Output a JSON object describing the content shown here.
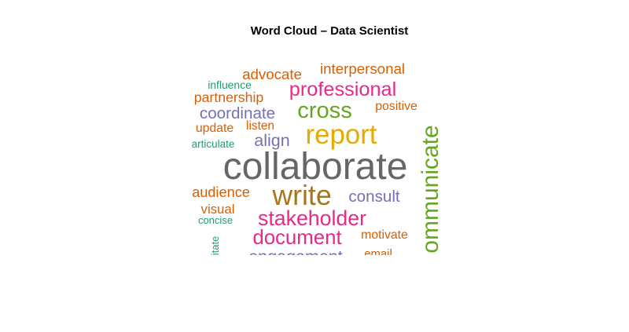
{
  "chart_data": {
    "type": "wordcloud",
    "title": "Word Cloud – Data Scientist",
    "colors": {
      "orange": "#d95f02",
      "teal": "#1b9e77",
      "purple": "#7570b3",
      "magenta": "#e7298a",
      "green": "#66a61e",
      "gold": "#e6ab02",
      "brown": "#a6761d",
      "gray": "#666666"
    },
    "words": [
      {
        "text": "collaborate",
        "weight": 100,
        "color": "gray",
        "rotate": 0
      },
      {
        "text": "write",
        "weight": 74,
        "color": "brown",
        "rotate": 0
      },
      {
        "text": "report",
        "weight": 72,
        "color": "gold",
        "rotate": 0
      },
      {
        "text": "ommunicate",
        "weight": 62,
        "color": "green",
        "rotate": -90
      },
      {
        "text": "cross",
        "weight": 60,
        "color": "green",
        "rotate": 0
      },
      {
        "text": "stakeholder",
        "weight": 55,
        "color": "magenta",
        "rotate": 0
      },
      {
        "text": "document",
        "weight": 53,
        "color": "magenta",
        "rotate": 0
      },
      {
        "text": "professional",
        "weight": 52,
        "color": "magenta",
        "rotate": 0
      },
      {
        "text": "engagement",
        "weight": 44,
        "color": "purple",
        "rotate": 0
      },
      {
        "text": "align",
        "weight": 44,
        "color": "purple",
        "rotate": 0
      },
      {
        "text": "consult",
        "weight": 42,
        "color": "purple",
        "rotate": 0
      },
      {
        "text": "coordinate",
        "weight": 42,
        "color": "purple",
        "rotate": 0
      },
      {
        "text": "interpersonal",
        "weight": 38,
        "color": "orange",
        "rotate": 0
      },
      {
        "text": "advocate",
        "weight": 38,
        "color": "orange",
        "rotate": 0
      },
      {
        "text": "audience",
        "weight": 37,
        "color": "orange",
        "rotate": 0
      },
      {
        "text": "partnership",
        "weight": 36,
        "color": "orange",
        "rotate": 0
      },
      {
        "text": "visual",
        "weight": 34,
        "color": "orange",
        "rotate": 0
      },
      {
        "text": "motivate",
        "weight": 32,
        "color": "orange",
        "rotate": 0
      },
      {
        "text": "positive",
        "weight": 32,
        "color": "orange",
        "rotate": 0
      },
      {
        "text": "update",
        "weight": 32,
        "color": "orange",
        "rotate": 0
      },
      {
        "text": "listen",
        "weight": 31,
        "color": "orange",
        "rotate": 0
      },
      {
        "text": "email",
        "weight": 30,
        "color": "orange",
        "rotate": 0
      },
      {
        "text": "influence",
        "weight": 28,
        "color": "teal",
        "rotate": 0
      },
      {
        "text": "articulate",
        "weight": 27,
        "color": "teal",
        "rotate": 0
      },
      {
        "text": "concise",
        "weight": 26,
        "color": "teal",
        "rotate": 0
      },
      {
        "text": "itate",
        "weight": 26,
        "color": "teal",
        "rotate": -90
      }
    ]
  }
}
